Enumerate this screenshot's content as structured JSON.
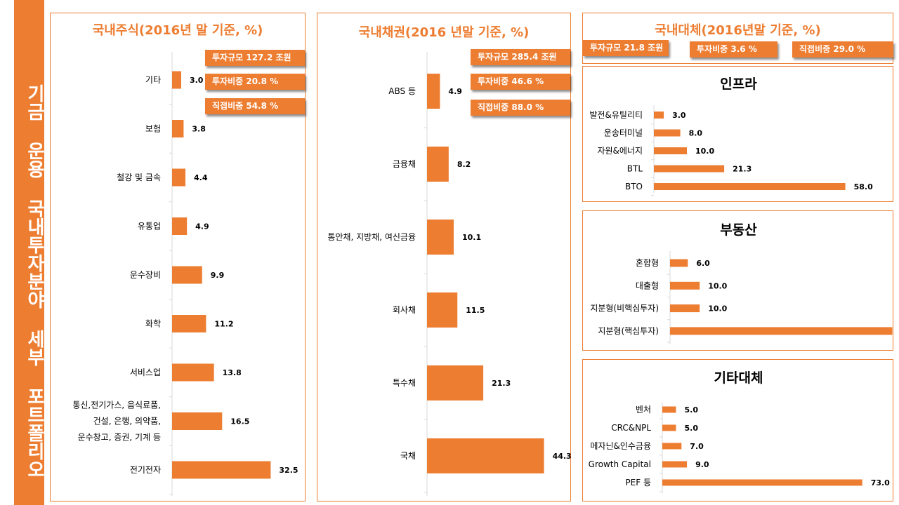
{
  "sidebar": {
    "title": "기금 운용 국내투자분야 세부 포트폴리오"
  },
  "colors": {
    "accent": "#ED7D31",
    "axis": "#d9d9d9"
  },
  "equity": {
    "title": "국내주식(2016년 말 기준, %)",
    "badges": [
      "투자규모 127.2 조원",
      "투자비중 20.8 %",
      "직접비중 54.8 %"
    ]
  },
  "bonds": {
    "title": "국내채권(2016 년말 기준, %)",
    "badges": [
      "투자규모 285.4 조원",
      "투자비중 46.6 %",
      "직접비중 88.0 %"
    ]
  },
  "alt": {
    "title": "국내대체(2016년말 기준, %)",
    "badges": [
      "투자규모 21.8 조원",
      "투자비중 3.6 %",
      "직접비중 29.0 %"
    ]
  },
  "chart_data": [
    {
      "id": "equity",
      "type": "bar",
      "orientation": "horizontal",
      "categories": [
        "기타",
        "보험",
        "철강 및 금속",
        "유통업",
        "운수장비",
        "화학",
        "서비스업",
        "통신,전기가스, 음식료품, 건설, 은행, 의약품, 운수창고, 증권, 기계 등",
        "전기전자"
      ],
      "values": [
        3.0,
        3.8,
        4.4,
        4.9,
        9.9,
        11.2,
        13.8,
        16.5,
        32.5
      ],
      "title": "국내주식(2016년 말 기준, %)"
    },
    {
      "id": "bonds",
      "type": "bar",
      "orientation": "horizontal",
      "categories": [
        "ABS 등",
        "금융채",
        "통안채, 지방채, 여신금융",
        "회사채",
        "특수채",
        "국채"
      ],
      "values": [
        4.9,
        8.2,
        10.1,
        11.5,
        21.3,
        44.3
      ],
      "title": "국내채권(2016 년말 기준, %)"
    },
    {
      "id": "infra",
      "type": "bar",
      "orientation": "horizontal",
      "categories": [
        "발전&유틸리티",
        "운송터미널",
        "자원&에너지",
        "BTL",
        "BTO"
      ],
      "values": [
        3.0,
        8.0,
        10.0,
        21.3,
        58.0
      ],
      "title": "인프라"
    },
    {
      "id": "realestate",
      "type": "bar",
      "orientation": "horizontal",
      "categories": [
        "혼합형",
        "대출형",
        "지분형(비핵심투자)",
        "지분형(핵심투자)"
      ],
      "values": [
        6.0,
        10.0,
        10.0,
        75.0
      ],
      "title": "부동산"
    },
    {
      "id": "otheralt",
      "type": "bar",
      "orientation": "horizontal",
      "categories": [
        "벤처",
        "CRC&NPL",
        "메자닌&인수금융",
        "Growth Capital",
        "PEF 등"
      ],
      "values": [
        5.0,
        5.0,
        7.0,
        9.0,
        73.0
      ],
      "title": "기타대체"
    }
  ]
}
